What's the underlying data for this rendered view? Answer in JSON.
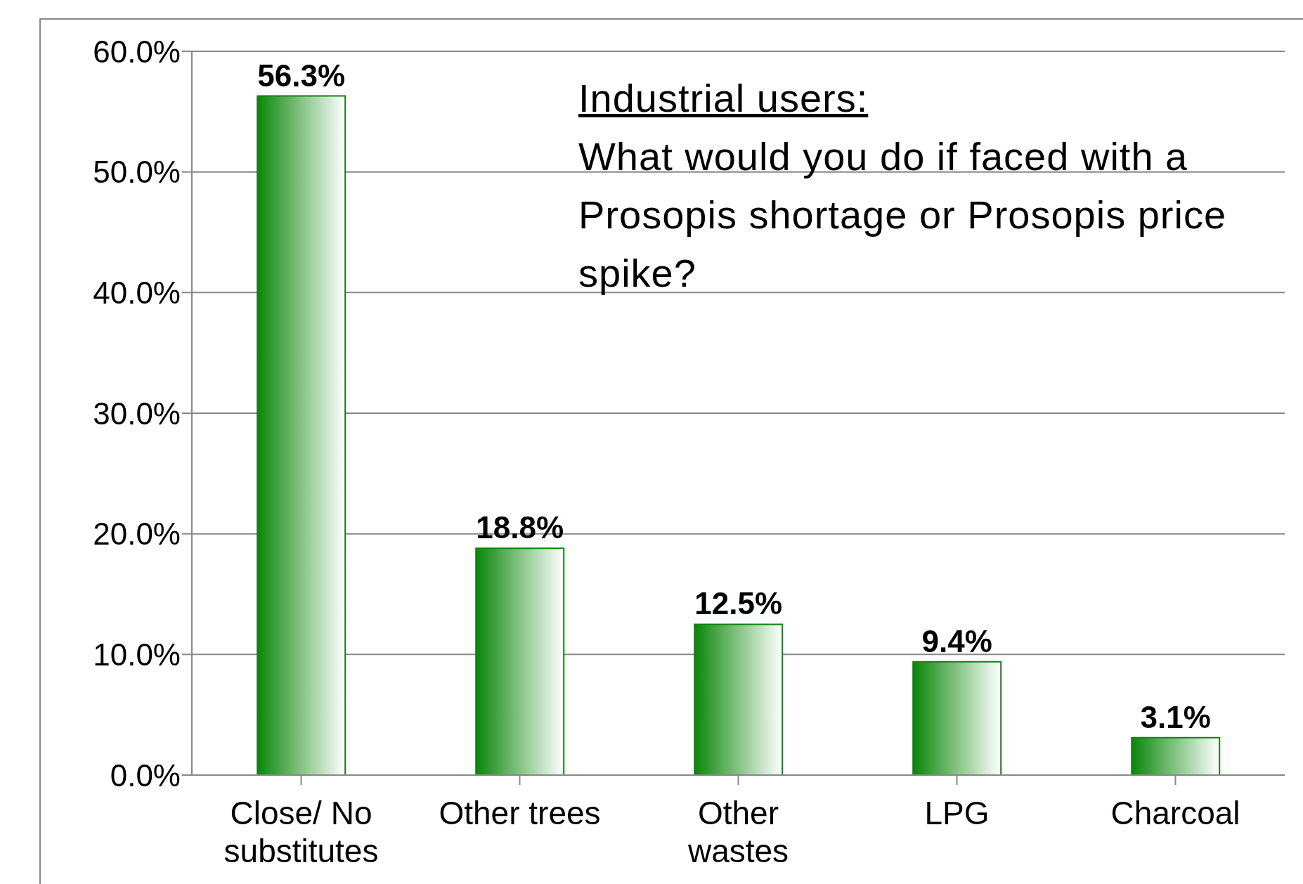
{
  "chart_data": {
    "type": "bar",
    "categories": [
      "Close/ No substitutes",
      "Other trees",
      "Other wastes",
      "LPG",
      "Charcoal"
    ],
    "values": [
      56.3,
      18.8,
      12.5,
      9.4,
      3.1
    ],
    "value_labels": [
      "56.3%",
      "18.8%",
      "12.5%",
      "9.4%",
      "3.1%"
    ],
    "color": "#0a860a",
    "ylim": [
      0,
      60
    ],
    "yticks": [
      {
        "value": 0,
        "label": "0.0%"
      },
      {
        "value": 10,
        "label": "10.0%"
      },
      {
        "value": 20,
        "label": "20.0%"
      },
      {
        "value": 30,
        "label": "30.0%"
      },
      {
        "value": 40,
        "label": "40.0%"
      },
      {
        "value": 50,
        "label": "50.0%"
      },
      {
        "value": 60,
        "label": "60.0%"
      }
    ],
    "grid": "y",
    "annotations": [
      "Industrial users:",
      "What would you do if faced with a Prosopis shortage or Prosopis price spike?"
    ]
  }
}
